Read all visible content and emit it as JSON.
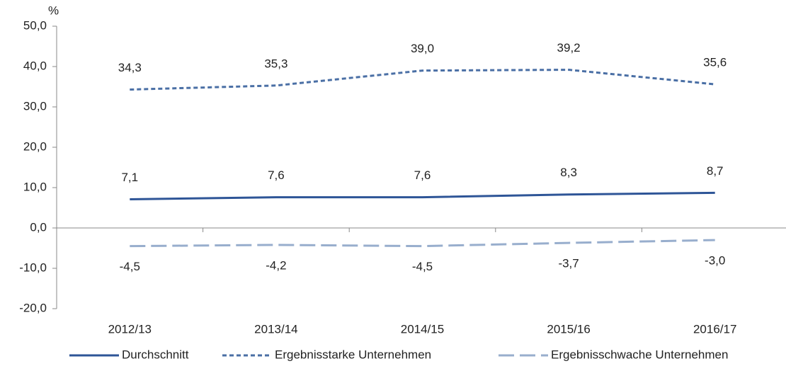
{
  "chart_data": {
    "type": "line",
    "y_label": "%",
    "categories": [
      "2012/13",
      "2013/14",
      "2014/15",
      "2015/16",
      "2016/17"
    ],
    "series": [
      {
        "name": "Durchschnitt",
        "color": "#2e5597",
        "dash": "solid",
        "values": [
          7.1,
          7.6,
          7.6,
          8.3,
          8.7
        ],
        "value_labels": [
          "7,1",
          "7,6",
          "7,6",
          "8,3",
          "8,7"
        ]
      },
      {
        "name": "Ergebnisstarke Unternehmen",
        "color": "#4a6fa5",
        "dash": "short",
        "values": [
          34.3,
          35.3,
          39.0,
          39.2,
          35.6
        ],
        "value_labels": [
          "34,3",
          "35,3",
          "39,0",
          "39,2",
          "35,6"
        ]
      },
      {
        "name": "Ergebnisschwache Unternehmen",
        "color": "#98aecd",
        "dash": "long",
        "values": [
          -4.5,
          -4.2,
          -4.5,
          -3.7,
          -3.0
        ],
        "value_labels": [
          "-4,5",
          "-4,2",
          "-4,5",
          "-3,7",
          "-3,0"
        ]
      }
    ],
    "ylim": [
      -20,
      50
    ],
    "yticks": [
      {
        "value": -20,
        "label": "-20,0"
      },
      {
        "value": -10,
        "label": "-10,0"
      },
      {
        "value": 0,
        "label": "0,0"
      },
      {
        "value": 10,
        "label": "10,0"
      },
      {
        "value": 20,
        "label": "20,0"
      },
      {
        "value": 30,
        "label": "30,0"
      },
      {
        "value": 40,
        "label": "40,0"
      },
      {
        "value": 50,
        "label": "50,0"
      }
    ],
    "grid": false,
    "legend": "bottom"
  }
}
